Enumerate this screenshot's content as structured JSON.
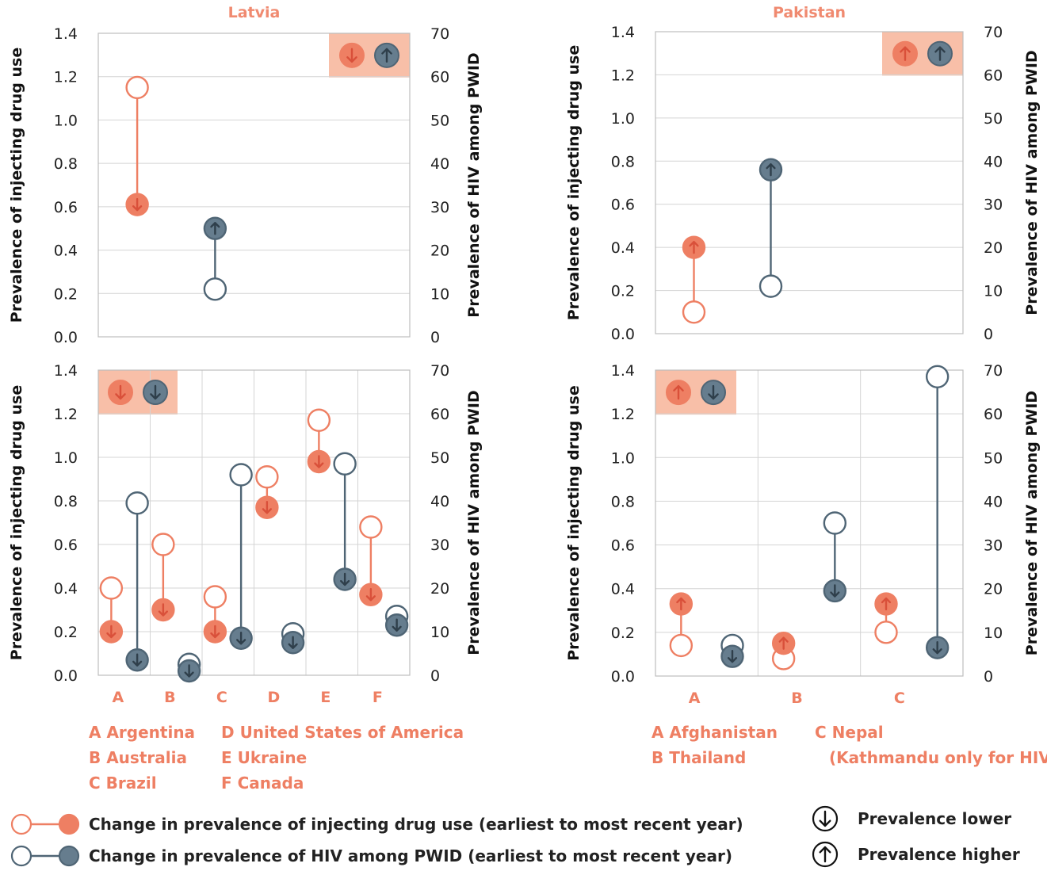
{
  "colors": {
    "idu": "#EE7F63",
    "hiv": "#667D8E",
    "hiv_dark": "#4F6575",
    "badge_bg": "#F8BFA8",
    "grid": "#D4D4D4",
    "label": "#EE7F63"
  },
  "chart_data": [
    {
      "type": "dumbbell",
      "title": "Latvia",
      "ylabel_left": "Prevalence of injecting drug use",
      "ylabel_right": "Prevalence of HIV among PWID",
      "ylim_left": [
        0,
        1.4
      ],
      "ylim_right": [
        0,
        70
      ],
      "left_ticks": [
        "0.0",
        "0.2",
        "0.4",
        "0.6",
        "0.8",
        "1.0",
        "1.2",
        "1.4"
      ],
      "right_ticks": [
        "0",
        "10",
        "20",
        "30",
        "40",
        "50",
        "60",
        "70"
      ],
      "categories": [],
      "grid": "horizontal",
      "badge": {
        "position": "top-right",
        "idu": "down",
        "hiv": "up"
      },
      "series": [
        {
          "name": "Change in prevalence of injecting drug use (earliest to most recent year)",
          "measure": "idu",
          "points": [
            {
              "slot": 0.5,
              "start": 1.15,
              "end": 0.61
            }
          ]
        },
        {
          "name": "Change in prevalence of HIV among PWID (earliest to most recent year)",
          "measure": "hiv",
          "points": [
            {
              "slot": 1.5,
              "start": 11,
              "end": 25
            }
          ]
        }
      ]
    },
    {
      "type": "dumbbell",
      "title": "Pakistan",
      "ylabel_left": "Prevalence of injecting drug use",
      "ylabel_right": "Prevalence of HIV among PWID",
      "ylim_left": [
        0,
        1.4
      ],
      "ylim_right": [
        0,
        70
      ],
      "left_ticks": [
        "0.0",
        "0.2",
        "0.4",
        "0.6",
        "0.8",
        "1.0",
        "1.2",
        "1.4"
      ],
      "right_ticks": [
        "0",
        "10",
        "20",
        "30",
        "40",
        "50",
        "60",
        "70"
      ],
      "categories": [],
      "grid": "horizontal",
      "badge": {
        "position": "top-right",
        "idu": "up",
        "hiv": "up"
      },
      "series": [
        {
          "name": "Change in prevalence of injecting drug use (earliest to most recent year)",
          "measure": "idu",
          "points": [
            {
              "slot": 0.5,
              "start": 0.1,
              "end": 0.4
            }
          ]
        },
        {
          "name": "Change in prevalence of HIV among PWID (earliest to most recent year)",
          "measure": "hiv",
          "points": [
            {
              "slot": 1.5,
              "start": 11,
              "end": 38
            }
          ]
        }
      ]
    },
    {
      "type": "dumbbell",
      "title": "",
      "ylabel_left": "Prevalence of injecting drug use",
      "ylabel_right": "Prevalence of HIV among PWID",
      "ylim_left": [
        0,
        1.4
      ],
      "ylim_right": [
        0,
        70
      ],
      "left_ticks": [
        "0.0",
        "0.2",
        "0.4",
        "0.6",
        "0.8",
        "1.0",
        "1.2",
        "1.4"
      ],
      "right_ticks": [
        "0",
        "10",
        "20",
        "30",
        "40",
        "50",
        "60",
        "70"
      ],
      "categories": [
        "A",
        "B",
        "C",
        "D",
        "E",
        "F"
      ],
      "grid": "both",
      "badge": {
        "position": "top-left",
        "idu": "down",
        "hiv": "down"
      },
      "series": [
        {
          "name": "Change in prevalence of injecting drug use (earliest to most recent year)",
          "measure": "idu",
          "points": [
            {
              "slot": 0.25,
              "start": 0.4,
              "end": 0.2
            },
            {
              "slot": 1.25,
              "start": 0.6,
              "end": 0.3
            },
            {
              "slot": 2.25,
              "start": 0.36,
              "end": 0.2
            },
            {
              "slot": 3.25,
              "start": 0.91,
              "end": 0.77
            },
            {
              "slot": 4.25,
              "start": 1.17,
              "end": 0.98
            },
            {
              "slot": 5.25,
              "start": 0.68,
              "end": 0.37
            }
          ]
        },
        {
          "name": "Change in prevalence of HIV among PWID (earliest to most recent year)",
          "measure": "hiv",
          "points": [
            {
              "slot": 0.75,
              "start": 39.5,
              "end": 3.5
            },
            {
              "slot": 1.75,
              "start": 2.5,
              "end": 1
            },
            {
              "slot": 2.75,
              "start": 46,
              "end": 8.5
            },
            {
              "slot": 3.75,
              "start": 9.5,
              "end": 7.5
            },
            {
              "slot": 4.75,
              "start": 48.5,
              "end": 22
            },
            {
              "slot": 5.75,
              "start": 13.5,
              "end": 11.5
            }
          ]
        }
      ]
    },
    {
      "type": "dumbbell",
      "title": "",
      "ylabel_left": "Prevalence of injecting drug use",
      "ylabel_right": "Prevalence of HIV among PWID",
      "ylim_left": [
        0,
        1.4
      ],
      "ylim_right": [
        0,
        70
      ],
      "left_ticks": [
        "0.0",
        "0.2",
        "0.4",
        "0.6",
        "0.8",
        "1.0",
        "1.2",
        "1.4"
      ],
      "right_ticks": [
        "0",
        "10",
        "20",
        "30",
        "40",
        "50",
        "60",
        "70"
      ],
      "categories": [
        "A",
        "B",
        "C"
      ],
      "grid": "both",
      "badge": {
        "position": "top-left",
        "idu": "up",
        "hiv": "down"
      },
      "series": [
        {
          "name": "Change in prevalence of injecting drug use (earliest to most recent year)",
          "measure": "idu",
          "points": [
            {
              "slot": 0.25,
              "start": 0.14,
              "end": 0.33
            },
            {
              "slot": 1.25,
              "start": 0.08,
              "end": 0.15
            },
            {
              "slot": 2.25,
              "start": 0.2,
              "end": 0.33
            }
          ]
        },
        {
          "name": "Change in prevalence of HIV among PWID (earliest to most recent year)",
          "measure": "hiv",
          "points": [
            {
              "slot": 0.75,
              "start": 7,
              "end": 4.5
            },
            {
              "slot": 1.75,
              "start": 35,
              "end": 19.5
            },
            {
              "slot": 2.75,
              "start": 68.5,
              "end": 6.5
            }
          ]
        }
      ]
    }
  ],
  "notes_left": [
    [
      "A Argentina",
      "B Australia",
      "C Brazil"
    ],
    [
      "D United States of America",
      "E Ukraine",
      "F Canada"
    ]
  ],
  "notes_right": [
    [
      "A Afghanistan",
      "B Thailand"
    ],
    [
      "C Nepal",
      "(Kathmandu only for HIV)"
    ]
  ],
  "legend": {
    "idu": "Change in prevalence of injecting drug use (earliest to most recent year)",
    "hiv": "Change in prevalence of HIV among PWID (earliest to most recent year)",
    "lower": "Prevalence lower",
    "higher": "Prevalence higher"
  }
}
